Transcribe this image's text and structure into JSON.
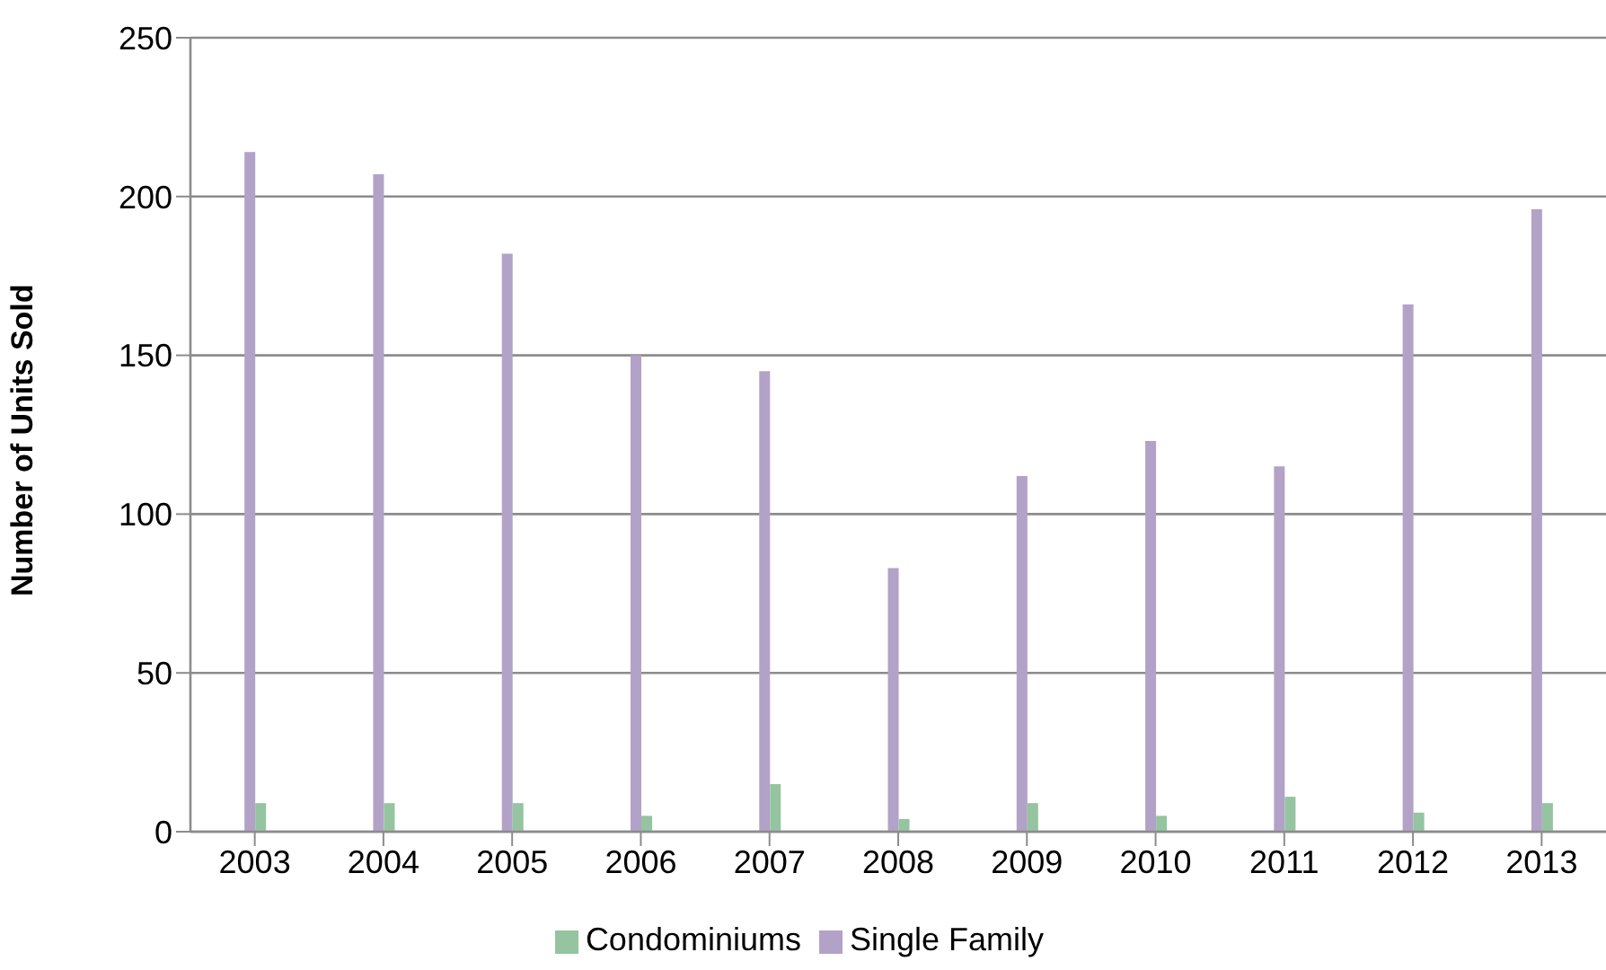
{
  "chart_data": {
    "type": "bar",
    "ylabel": "Number of Units Sold",
    "categories": [
      "2003",
      "2004",
      "2005",
      "2006",
      "2007",
      "2008",
      "2009",
      "2010",
      "2011",
      "2012",
      "2013"
    ],
    "series": [
      {
        "name": "Single Family",
        "color": "#b3a2c7",
        "values": [
          214,
          207,
          182,
          150,
          145,
          83,
          112,
          123,
          115,
          166,
          196
        ]
      },
      {
        "name": "Condominiums",
        "color": "#95c4a0",
        "values": [
          9,
          9,
          9,
          5,
          15,
          4,
          9,
          5,
          11,
          6,
          9
        ]
      }
    ],
    "ylim": [
      0,
      250
    ],
    "yticks": [
      0,
      50,
      100,
      150,
      200,
      250
    ],
    "grid": "y",
    "legend": "bottom"
  }
}
